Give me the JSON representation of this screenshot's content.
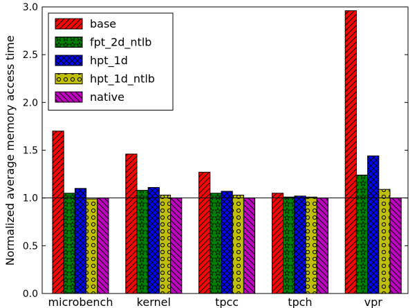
{
  "chart_data": {
    "type": "bar",
    "categories": [
      "microbench",
      "kernel",
      "tpcc",
      "tpch",
      "vpr"
    ],
    "ylabel": "Normalized average memory access time",
    "xlabel": "",
    "title": "",
    "ylim": [
      0.0,
      3.0
    ],
    "yticks": [
      "0.0",
      "0.5",
      "1.0",
      "1.5",
      "2.0",
      "2.5",
      "3.0"
    ],
    "reference_line": 1.0,
    "legend_placement": "top-left",
    "grid": false,
    "series": [
      {
        "name": "base",
        "color": "#ff0000",
        "hatch": "diagonal",
        "values": [
          1.7,
          1.46,
          1.27,
          1.05,
          2.96
        ]
      },
      {
        "name": "fpt_2d_ntlb",
        "color": "#008000",
        "hatch": "stars",
        "values": [
          1.05,
          1.08,
          1.05,
          1.01,
          1.24
        ]
      },
      {
        "name": "hpt_1d",
        "color": "#0000ff",
        "hatch": "crosshatch",
        "values": [
          1.1,
          1.11,
          1.07,
          1.02,
          1.44
        ]
      },
      {
        "name": "hpt_1d_ntlb",
        "color": "#bfbf00",
        "hatch": "circles",
        "values": [
          0.99,
          1.03,
          1.03,
          1.01,
          1.09
        ]
      },
      {
        "name": "native",
        "color": "#bf00bf",
        "hatch": "backdiagonal",
        "values": [
          1.0,
          1.0,
          1.0,
          1.0,
          1.0
        ]
      }
    ]
  }
}
